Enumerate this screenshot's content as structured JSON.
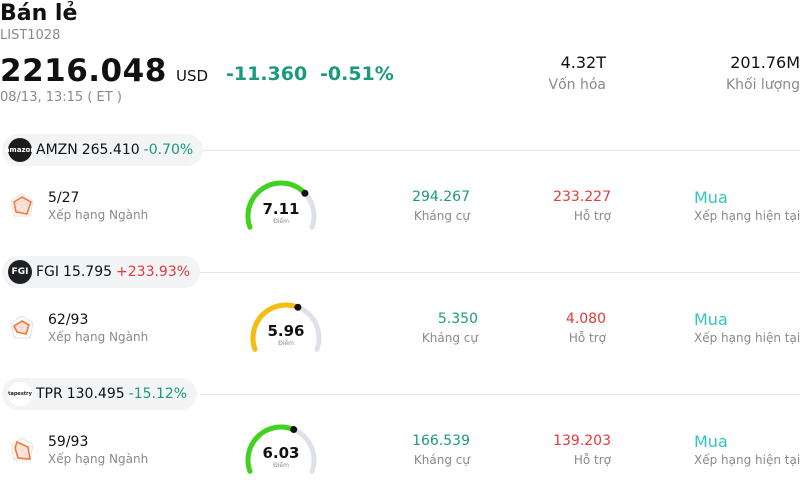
{
  "header": {
    "title": "Bán lẻ",
    "code": "LIST1028",
    "price": "2216.048",
    "currency": "USD",
    "change": "-11.360",
    "change_pct": "-0.51%",
    "time": "08/13, 13:15  ( ET )",
    "market_cap_value": "4.32T",
    "market_cap_label": "Vốn hóa",
    "volume_value": "201.76M",
    "volume_label": "Khối lượng"
  },
  "colors": {
    "down": "#1a9a7c",
    "up": "#e5383b",
    "rating": "#35c4c0",
    "gauge_green": "#3fd21f",
    "gauge_yellow": "#f5bd0f",
    "gauge_track": "#dfe1ea"
  },
  "stocks": [
    {
      "logo_icon": "amazon-logo-icon",
      "logo_text": "amazon",
      "symbol": "AMZN",
      "price": "265.410",
      "change_pct": "-0.70%",
      "direction": "down",
      "rank": "5/27",
      "rank_label": "Xếp hạng Ngành",
      "score": "7.11",
      "score_fraction": 0.711,
      "score_caption": "Điểm",
      "resistance": "294.267",
      "resistance_label": "Kháng cự",
      "support": "233.227",
      "support_label": "Hỗ trợ",
      "rating": "Mua",
      "rating_label": "Xếp hạng hiện tại"
    },
    {
      "logo_icon": "fgi-logo-icon",
      "logo_text": "FGI",
      "symbol": "FGI",
      "price": "15.795",
      "change_pct": "+233.93%",
      "direction": "up",
      "rank": "62/93",
      "rank_label": "Xếp hạng Ngành",
      "score": "5.96",
      "score_fraction": 0.596,
      "score_caption": "Điểm",
      "resistance": "5.350",
      "resistance_label": "Kháng cự",
      "support": "4.080",
      "support_label": "Hỗ trợ",
      "rating": "Mua",
      "rating_label": "Xếp hạng hiện tại"
    },
    {
      "logo_icon": "tapestry-logo-icon",
      "logo_text": "tapestry",
      "symbol": "TPR",
      "price": "130.495",
      "change_pct": "-15.12%",
      "direction": "down",
      "rank": "59/93",
      "rank_label": "Xếp hạng Ngành",
      "score": "6.03",
      "score_fraction": 0.603,
      "score_caption": "Điểm",
      "resistance": "166.539",
      "resistance_label": "Kháng cự",
      "support": "139.203",
      "support_label": "Hỗ trợ",
      "rating": "Mua",
      "rating_label": "Xếp hạng hiện tại"
    }
  ]
}
